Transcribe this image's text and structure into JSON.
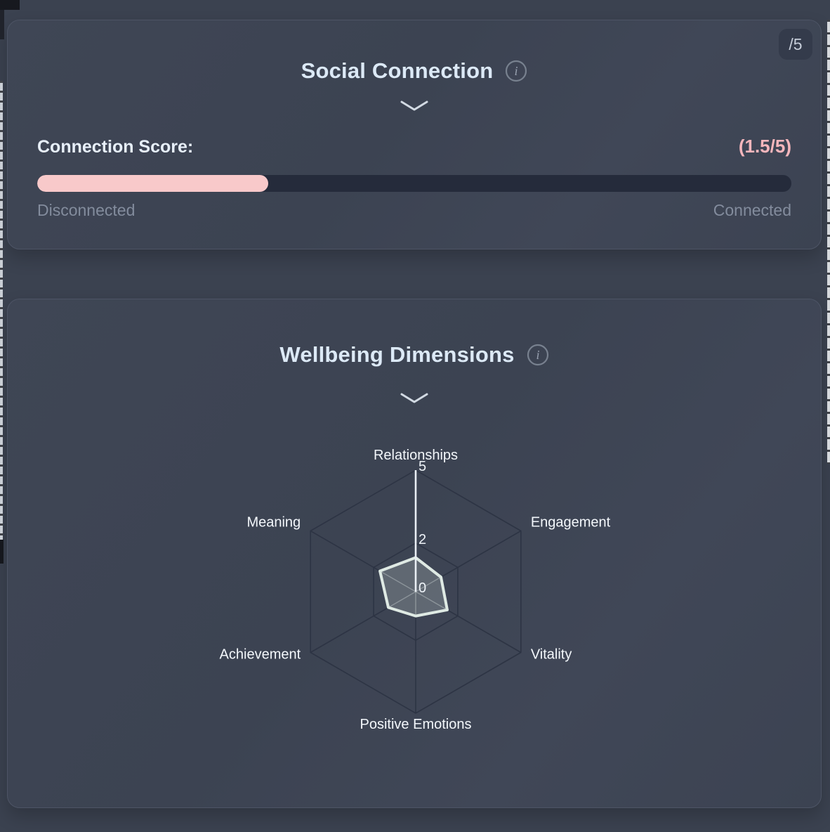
{
  "page": {
    "background": "#3b4250",
    "card_border": "#4d5465"
  },
  "cards": {
    "social": {
      "badge": "/5",
      "title": "Social Connection",
      "info_icon": "info-icon",
      "score_label": "Connection Score:",
      "score_value": "(1.5/5)",
      "score_value_color": "#f5b6bc",
      "score_percent": 30.6,
      "bar_fill_color": "#f8c9ca",
      "bar_track_color": "#252b3b",
      "min_label": "Disconnected",
      "max_label": "Connected"
    },
    "wellbeing": {
      "title": "Wellbeing Dimensions",
      "info_icon": "info-icon"
    }
  },
  "chart_data": {
    "type": "radar",
    "title": "Wellbeing Dimensions",
    "categories": [
      "Relationships",
      "Engagement",
      "Vitality",
      "Positive Emotions",
      "Achievement",
      "Meaning"
    ],
    "values": [
      1.4,
      1.2,
      1.5,
      1.0,
      1.3,
      1.7
    ],
    "scale": {
      "min": 0,
      "max": 5,
      "rings": [
        2,
        5
      ],
      "ticks": [
        {
          "label": "5",
          "value": 5
        },
        {
          "label": "2",
          "value": 2
        },
        {
          "label": "0",
          "value": 0
        }
      ]
    },
    "legend": "none",
    "grid": "hexagonal",
    "grid_color": "#2d3444",
    "highlight_axis": "Relationships",
    "highlight_axis_color": "#e9eef4",
    "polygon_stroke_color": "#dfeae4",
    "polygon_fill_color": "rgba(223,234,228,0.22)",
    "inner_spoke_color": "rgba(226,236,232,0.40)",
    "axis_label_color": "#f3f7fb",
    "tick_label_color": "#eef3f8"
  }
}
